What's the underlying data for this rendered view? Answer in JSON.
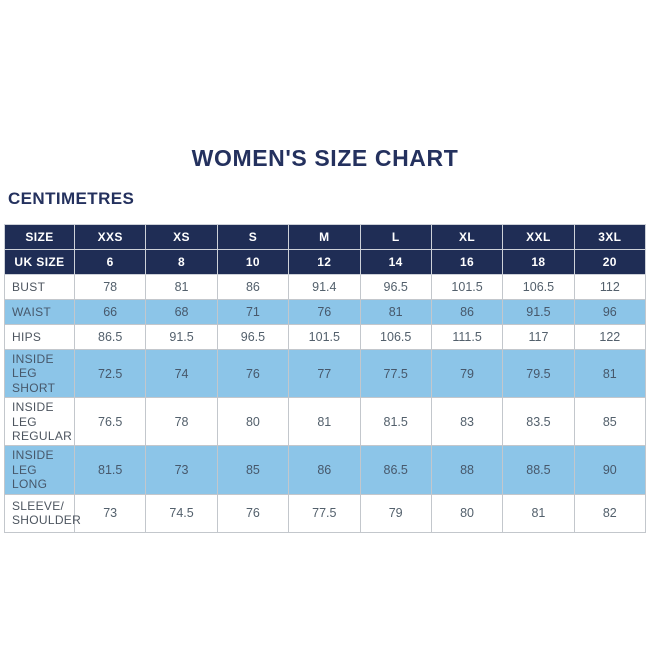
{
  "page": {
    "title": "WOMEN'S SIZE CHART",
    "subtitle": "CENTIMETRES"
  },
  "colors": {
    "navy_header": "#1F2D55",
    "highlight_blue": "#8CC5E8",
    "title_navy": "#24315E",
    "body_text": "#53606C",
    "border_gray": "#C3C7CC",
    "background": "#FFFFFF"
  },
  "chart_data": {
    "type": "table",
    "title": "WOMEN'S SIZE CHART",
    "unit": "CENTIMETRES",
    "header_rows": [
      {
        "label": "SIZE",
        "values": [
          "XXS",
          "XS",
          "S",
          "M",
          "L",
          "XL",
          "XXL",
          "3XL"
        ]
      },
      {
        "label": "UK SIZE",
        "values": [
          "6",
          "8",
          "10",
          "12",
          "14",
          "16",
          "18",
          "20"
        ]
      }
    ],
    "rows": [
      {
        "label": "BUST",
        "highlight": false,
        "values": [
          "78",
          "81",
          "86",
          "91.4",
          "96.5",
          "101.5",
          "106.5",
          "112"
        ]
      },
      {
        "label": "WAIST",
        "highlight": true,
        "values": [
          "66",
          "68",
          "71",
          "76",
          "81",
          "86",
          "91.5",
          "96"
        ]
      },
      {
        "label": "HIPS",
        "highlight": false,
        "values": [
          "86.5",
          "91.5",
          "96.5",
          "101.5",
          "106.5",
          "111.5",
          "117",
          "122"
        ]
      },
      {
        "label": "INSIDE LEG\nSHORT",
        "highlight": true,
        "values": [
          "72.5",
          "74",
          "76",
          "77",
          "77.5",
          "79",
          "79.5",
          "81"
        ]
      },
      {
        "label": "INSIDE LEG\nREGULAR",
        "highlight": false,
        "values": [
          "76.5",
          "78",
          "80",
          "81",
          "81.5",
          "83",
          "83.5",
          "85"
        ]
      },
      {
        "label": "INSIDE LEG\nLONG",
        "highlight": true,
        "values": [
          "81.5",
          "73",
          "85",
          "86",
          "86.5",
          "88",
          "88.5",
          "90"
        ]
      },
      {
        "label": "SLEEVE/\nSHOULDER",
        "highlight": false,
        "values": [
          "73",
          "74.5",
          "76",
          "77.5",
          "79",
          "80",
          "81",
          "82"
        ]
      }
    ]
  }
}
